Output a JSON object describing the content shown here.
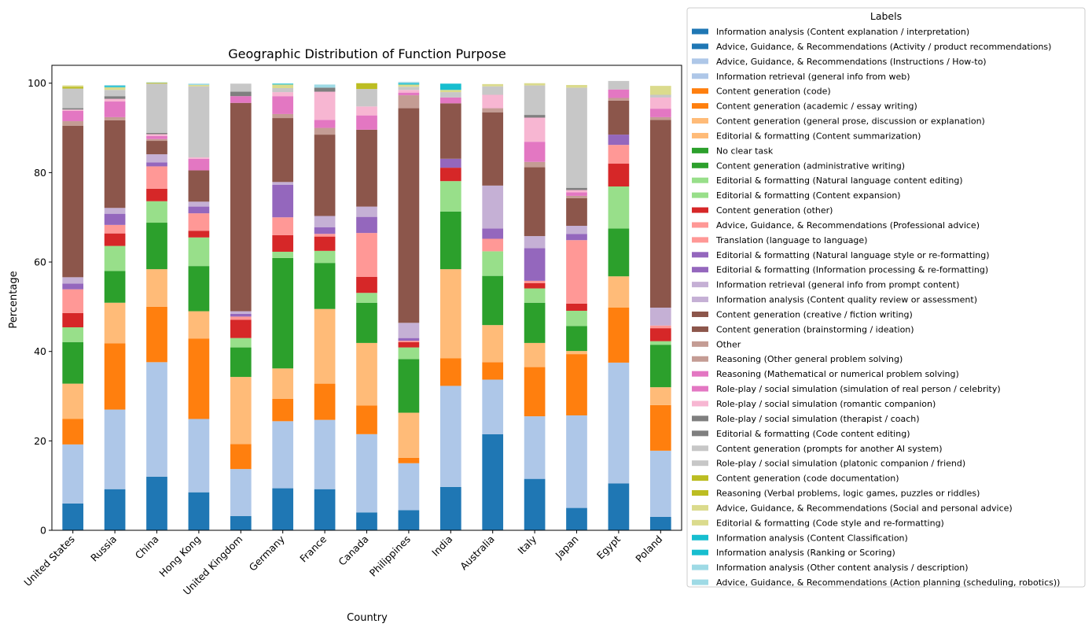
{
  "chart_data": {
    "type": "bar",
    "stacked": true,
    "title": "Geographic Distribution of Function Purpose",
    "xlabel": "Country",
    "ylabel": "Percentage",
    "ylim": [
      0,
      104
    ],
    "yticks": [
      0,
      20,
      40,
      60,
      80,
      100
    ],
    "legend_title": "Labels",
    "legend_position": "outside right",
    "categories": [
      "United States",
      "Russia",
      "China",
      "Hong Kong",
      "United Kingdom",
      "Germany",
      "France",
      "Canada",
      "Philippines",
      "India",
      "Australia",
      "Italy",
      "Japan",
      "Egypt",
      "Poland"
    ],
    "series": [
      {
        "name": "Information analysis (Content explanation / interpretation)",
        "color": "#1f77b4",
        "values": [
          6,
          9.2,
          12,
          8.5,
          3.2,
          9.4,
          9.2,
          4,
          4.5,
          9.7,
          21.5,
          11.5,
          5,
          10.5,
          3
        ]
      },
      {
        "name": "Advice, Guidance, & Recommendations (Activity / product recommendations)",
        "color": "#1f77b4",
        "values": [
          0,
          0,
          0,
          0,
          0,
          0,
          0,
          0,
          0,
          0,
          0,
          0,
          0,
          0,
          0
        ]
      },
      {
        "name": "Advice, Guidance, & Recommendations (Instructions / How-to)",
        "color": "#aec7e8",
        "values": [
          13.2,
          17.8,
          25.6,
          16.4,
          10.5,
          15,
          15.5,
          17.5,
          10.5,
          22.6,
          12.2,
          14,
          20.7,
          27,
          14.8
        ]
      },
      {
        "name": "Information retrieval (general info from web)",
        "color": "#aec7e8",
        "values": [
          0,
          0,
          0,
          0,
          0,
          0,
          0,
          0,
          0,
          0,
          0,
          0,
          0,
          0,
          0
        ]
      },
      {
        "name": "Content generation (code)",
        "color": "#ff7f0e",
        "values": [
          5.7,
          14.8,
          12.4,
          18,
          5.6,
          5,
          8.1,
          6.4,
          1.2,
          6.2,
          3.9,
          11,
          13.7,
          12.3,
          10.2
        ]
      },
      {
        "name": "Content generation (academic / essay writing)",
        "color": "#ff7f0e",
        "values": [
          0,
          0,
          0,
          0,
          0,
          0,
          0,
          0,
          0,
          0,
          0,
          0,
          0,
          0,
          0
        ]
      },
      {
        "name": "Content generation (general prose, discussion or explanation)",
        "color": "#ffbb78",
        "values": [
          7.9,
          9.1,
          8.4,
          6.1,
          15,
          6.8,
          16.7,
          14,
          10.1,
          19.9,
          8.3,
          5.4,
          0.7,
          7,
          4
        ]
      },
      {
        "name": "Editorial & formatting (Content summarization)",
        "color": "#ffbb78",
        "values": [
          0,
          0,
          0,
          0,
          0,
          0,
          0,
          0,
          0,
          0,
          0,
          0,
          0,
          0,
          0
        ]
      },
      {
        "name": "No clear task",
        "color": "#2ca02c",
        "values": [
          9.3,
          7.1,
          10.4,
          10.1,
          6.6,
          24.7,
          10.3,
          9,
          12,
          12.9,
          11,
          9,
          5.6,
          10.7,
          9.5
        ]
      },
      {
        "name": "Content generation (administrative writing)",
        "color": "#2ca02c",
        "values": [
          0,
          0,
          0,
          0,
          0,
          0,
          0,
          0,
          0,
          0,
          0,
          0,
          0,
          0,
          0
        ]
      },
      {
        "name": "Editorial & formatting (Natural language content editing)",
        "color": "#98df8a",
        "values": [
          3.3,
          5.6,
          4.8,
          6.4,
          2.1,
          1.4,
          2.7,
          2.2,
          2.6,
          6.8,
          5.5,
          3.2,
          3.4,
          9.4,
          0.8
        ]
      },
      {
        "name": "Editorial & formatting (Content expansion)",
        "color": "#98df8a",
        "values": [
          0,
          0,
          0,
          0,
          0,
          0,
          0,
          0,
          0,
          0,
          0,
          0,
          0,
          0,
          0
        ]
      },
      {
        "name": "Content generation (other)",
        "color": "#d62728",
        "values": [
          3.2,
          2.8,
          2.8,
          1.5,
          4.1,
          3.7,
          3.2,
          3.6,
          1.2,
          3,
          0,
          1.2,
          1.6,
          5.1,
          2.9
        ]
      },
      {
        "name": "Advice, Guidance, & Recommendations (Professional advice)",
        "color": "#ff9896",
        "values": [
          5.3,
          1.9,
          5,
          3.9,
          0.7,
          4,
          0.6,
          9.8,
          0.3,
          0,
          2.8,
          0.5,
          14.2,
          4.2,
          0.6
        ]
      },
      {
        "name": "Translation (language to language)",
        "color": "#ff9896",
        "values": [
          0,
          0,
          0,
          0,
          0,
          0,
          0,
          0,
          0,
          0,
          0,
          0,
          0,
          0,
          0
        ]
      },
      {
        "name": "Editorial & formatting (Natural language style or re-formatting)",
        "color": "#9467bd",
        "values": [
          1.3,
          2.5,
          0.9,
          1.5,
          0.6,
          7.3,
          1.5,
          3.6,
          0.6,
          2,
          2.3,
          7.3,
          1.4,
          2.3,
          0
        ]
      },
      {
        "name": "Editorial & formatting (Information processing & re-formatting)",
        "color": "#9467bd",
        "values": [
          0,
          0,
          0,
          0,
          0,
          0,
          0,
          0,
          0,
          0,
          0,
          0,
          0,
          0,
          0
        ]
      },
      {
        "name": "Information retrieval (general info from prompt content)",
        "color": "#c5b0d5",
        "values": [
          1.4,
          1.3,
          1.8,
          1.1,
          0.6,
          0.6,
          2.5,
          2.3,
          3.4,
          0,
          9.6,
          2.7,
          1.8,
          0,
          4
        ]
      },
      {
        "name": "Information analysis (Content quality review or assessment)",
        "color": "#c5b0d5",
        "values": [
          0,
          0,
          0,
          0,
          0,
          0,
          0,
          0,
          0,
          0,
          0,
          0,
          0,
          0,
          0
        ]
      },
      {
        "name": "Content generation (creative / fiction writing)",
        "color": "#8c564b",
        "values": [
          33.9,
          19.6,
          3,
          7,
          46.6,
          14.3,
          18.2,
          17.2,
          48,
          12.4,
          16.4,
          15.4,
          6.2,
          7.6,
          42
        ]
      },
      {
        "name": "Content generation (brainstorming / ideation)",
        "color": "#8c564b",
        "values": [
          0,
          0,
          0,
          0,
          0,
          0,
          0,
          0,
          0,
          0,
          0,
          0,
          0,
          0,
          0
        ]
      },
      {
        "name": "Other",
        "color": "#c49c94",
        "values": [
          1,
          0.7,
          0.4,
          0,
          0,
          0.9,
          1.5,
          0,
          2.9,
          0,
          0.9,
          1.2,
          0.5,
          0.6,
          0.6
        ]
      },
      {
        "name": "Reasoning (Other general problem solving)",
        "color": "#c49c94",
        "values": [
          0,
          0,
          0,
          0,
          0,
          0,
          0,
          0,
          0,
          0,
          0,
          0,
          0,
          0,
          0
        ]
      },
      {
        "name": "Reasoning (Mathematical or numerical problem solving)",
        "color": "#e377c2",
        "values": [
          2.3,
          3.5,
          0.7,
          2.6,
          1.5,
          4,
          1.8,
          3.2,
          0.6,
          1.3,
          0,
          4.5,
          0.8,
          1.9,
          1.9
        ]
      },
      {
        "name": "Role-play / social simulation (simulation of real person / celebrity)",
        "color": "#e377c2",
        "values": [
          0,
          0,
          0,
          0,
          0,
          0,
          0,
          0,
          0,
          0,
          0,
          0,
          0,
          0,
          0
        ]
      },
      {
        "name": "Role-play / social simulation (romantic companion)",
        "color": "#f7b6d2",
        "values": [
          0.3,
          0.6,
          0.4,
          0.3,
          0,
          0.9,
          6.3,
          2,
          0.6,
          0,
          3,
          5.4,
          0.5,
          0,
          2.5
        ]
      },
      {
        "name": "Role-play / social simulation (therapist / coach)",
        "color": "#7f7f7f",
        "values": [
          0.3,
          0.6,
          0.3,
          0,
          1,
          0,
          0.9,
          0,
          0,
          0,
          0,
          0.6,
          0.5,
          0,
          0
        ]
      },
      {
        "name": "Editorial & formatting (Code content editing)",
        "color": "#7f7f7f",
        "values": [
          0,
          0,
          0,
          0,
          0,
          0,
          0,
          0,
          0,
          0,
          0,
          0,
          0,
          0,
          0
        ]
      },
      {
        "name": "Content generation (prompts for another AI system)",
        "color": "#c7c7c7",
        "values": [
          4.4,
          1.4,
          11,
          15.9,
          1.8,
          0.9,
          0,
          3.9,
          0.7,
          1.2,
          1.9,
          6.6,
          22.4,
          1.9,
          0.6
        ]
      },
      {
        "name": "Role-play / social simulation (platonic companion / friend)",
        "color": "#c7c7c7",
        "values": [
          0,
          0,
          0,
          0,
          0,
          0,
          0,
          0,
          0,
          0,
          0,
          0,
          0,
          0,
          0
        ]
      },
      {
        "name": "Content generation (code documentation)",
        "color": "#bcbd22",
        "values": [
          0.4,
          0,
          0.2,
          0,
          0,
          0,
          0,
          1.3,
          0,
          0,
          0,
          0,
          0,
          0,
          0
        ]
      },
      {
        "name": "Reasoning (Verbal problems, logic games, puzzles or riddles)",
        "color": "#bcbd22",
        "values": [
          0,
          0,
          0,
          0,
          0,
          0,
          0,
          0,
          0,
          0,
          0,
          0,
          0,
          0,
          0
        ]
      },
      {
        "name": "Advice, Guidance, & Recommendations (Social and personal advice)",
        "color": "#dbdb8d",
        "values": [
          0.3,
          0.6,
          0,
          0.3,
          0,
          0.8,
          0,
          0,
          0.5,
          0.5,
          0.5,
          0.5,
          0.6,
          0,
          2
        ]
      },
      {
        "name": "Editorial & formatting (Code style and re-formatting)",
        "color": "#dbdb8d",
        "values": [
          0,
          0,
          0,
          0,
          0,
          0,
          0,
          0,
          0,
          0,
          0,
          0,
          0,
          0,
          0
        ]
      },
      {
        "name": "Information analysis (Content Classification)",
        "color": "#17becf",
        "values": [
          0,
          0.3,
          0,
          0,
          0,
          0.2,
          0,
          0,
          0.3,
          1.4,
          0,
          0,
          0,
          0,
          0
        ]
      },
      {
        "name": "Information analysis (Ranking or Scoring)",
        "color": "#17becf",
        "values": [
          0,
          0,
          0,
          0,
          0,
          0,
          0,
          0,
          0,
          0,
          0,
          0,
          0,
          0,
          0
        ]
      },
      {
        "name": "Information analysis (Other content analysis / description)",
        "color": "#9edae5",
        "values": [
          0,
          0.2,
          0.1,
          0.3,
          0,
          0,
          0.7,
          0,
          0.3,
          0,
          0,
          0,
          0,
          0,
          0
        ]
      },
      {
        "name": "Advice, Guidance, & Recommendations (Action planning (scheduling, robotics))",
        "color": "#9edae5",
        "values": [
          0,
          0,
          0,
          0,
          0,
          0,
          0,
          0,
          0,
          0,
          0,
          0,
          0,
          0,
          0
        ]
      }
    ]
  }
}
